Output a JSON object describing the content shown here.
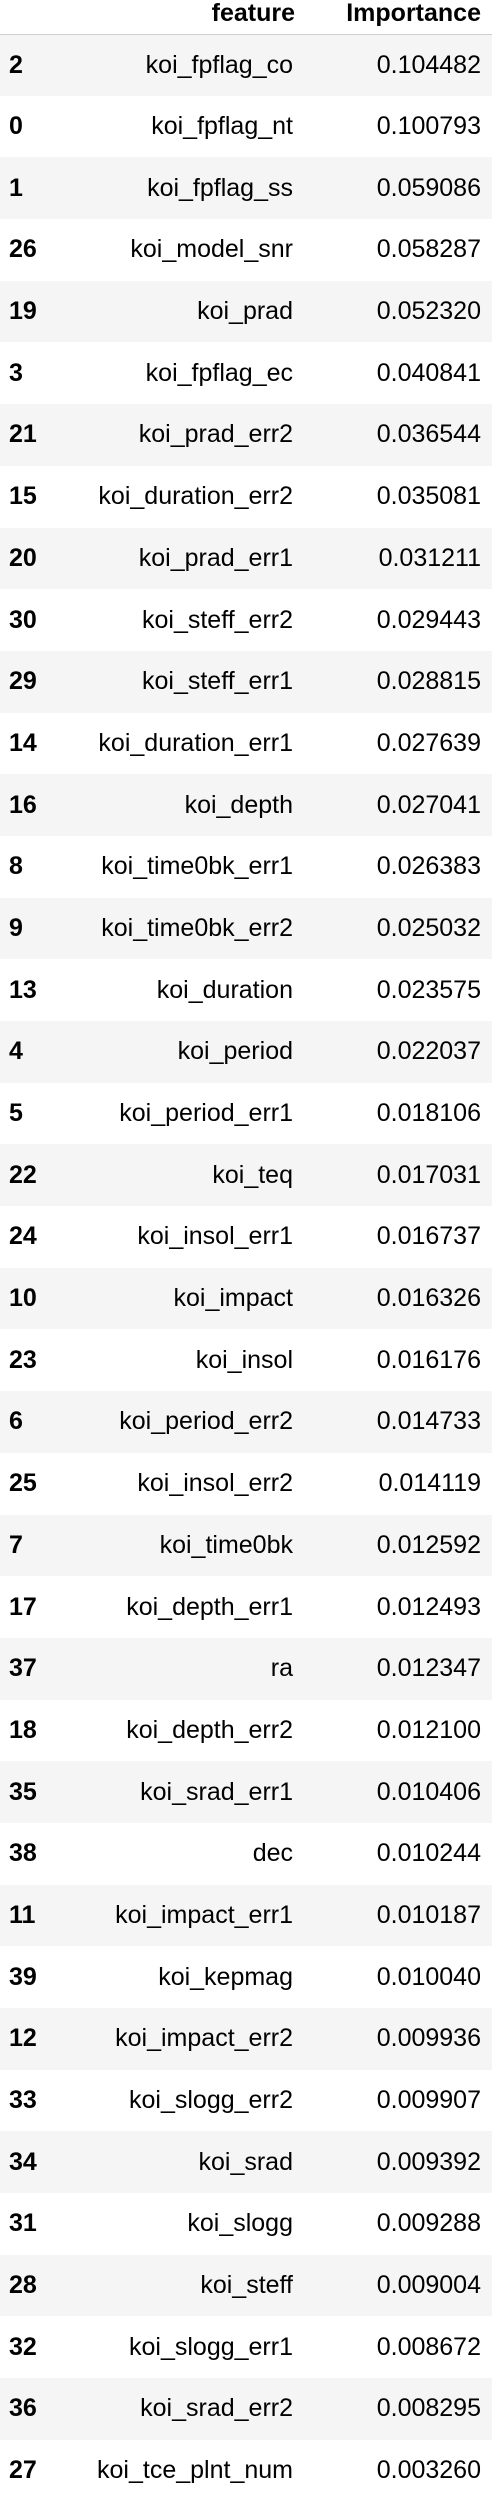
{
  "table": {
    "columns": {
      "index": "",
      "feature": "feature",
      "importance": "Importance"
    },
    "rows": [
      {
        "index": "2",
        "feature": "koi_fpflag_co",
        "importance": "0.104482"
      },
      {
        "index": "0",
        "feature": "koi_fpflag_nt",
        "importance": "0.100793"
      },
      {
        "index": "1",
        "feature": "koi_fpflag_ss",
        "importance": "0.059086"
      },
      {
        "index": "26",
        "feature": "koi_model_snr",
        "importance": "0.058287"
      },
      {
        "index": "19",
        "feature": "koi_prad",
        "importance": "0.052320"
      },
      {
        "index": "3",
        "feature": "koi_fpflag_ec",
        "importance": "0.040841"
      },
      {
        "index": "21",
        "feature": "koi_prad_err2",
        "importance": "0.036544"
      },
      {
        "index": "15",
        "feature": "koi_duration_err2",
        "importance": "0.035081"
      },
      {
        "index": "20",
        "feature": "koi_prad_err1",
        "importance": "0.031211"
      },
      {
        "index": "30",
        "feature": "koi_steff_err2",
        "importance": "0.029443"
      },
      {
        "index": "29",
        "feature": "koi_steff_err1",
        "importance": "0.028815"
      },
      {
        "index": "14",
        "feature": "koi_duration_err1",
        "importance": "0.027639"
      },
      {
        "index": "16",
        "feature": "koi_depth",
        "importance": "0.027041"
      },
      {
        "index": "8",
        "feature": "koi_time0bk_err1",
        "importance": "0.026383"
      },
      {
        "index": "9",
        "feature": "koi_time0bk_err2",
        "importance": "0.025032"
      },
      {
        "index": "13",
        "feature": "koi_duration",
        "importance": "0.023575"
      },
      {
        "index": "4",
        "feature": "koi_period",
        "importance": "0.022037"
      },
      {
        "index": "5",
        "feature": "koi_period_err1",
        "importance": "0.018106"
      },
      {
        "index": "22",
        "feature": "koi_teq",
        "importance": "0.017031"
      },
      {
        "index": "24",
        "feature": "koi_insol_err1",
        "importance": "0.016737"
      },
      {
        "index": "10",
        "feature": "koi_impact",
        "importance": "0.016326"
      },
      {
        "index": "23",
        "feature": "koi_insol",
        "importance": "0.016176"
      },
      {
        "index": "6",
        "feature": "koi_period_err2",
        "importance": "0.014733"
      },
      {
        "index": "25",
        "feature": "koi_insol_err2",
        "importance": "0.014119"
      },
      {
        "index": "7",
        "feature": "koi_time0bk",
        "importance": "0.012592"
      },
      {
        "index": "17",
        "feature": "koi_depth_err1",
        "importance": "0.012493"
      },
      {
        "index": "37",
        "feature": "ra",
        "importance": "0.012347"
      },
      {
        "index": "18",
        "feature": "koi_depth_err2",
        "importance": "0.012100"
      },
      {
        "index": "35",
        "feature": "koi_srad_err1",
        "importance": "0.010406"
      },
      {
        "index": "38",
        "feature": "dec",
        "importance": "0.010244"
      },
      {
        "index": "11",
        "feature": "koi_impact_err1",
        "importance": "0.010187"
      },
      {
        "index": "39",
        "feature": "koi_kepmag",
        "importance": "0.010040"
      },
      {
        "index": "12",
        "feature": "koi_impact_err2",
        "importance": "0.009936"
      },
      {
        "index": "33",
        "feature": "koi_slogg_err2",
        "importance": "0.009907"
      },
      {
        "index": "34",
        "feature": "koi_srad",
        "importance": "0.009392"
      },
      {
        "index": "31",
        "feature": "koi_slogg",
        "importance": "0.009288"
      },
      {
        "index": "28",
        "feature": "koi_steff",
        "importance": "0.009004"
      },
      {
        "index": "32",
        "feature": "koi_slogg_err1",
        "importance": "0.008672"
      },
      {
        "index": "36",
        "feature": "koi_srad_err2",
        "importance": "0.008295"
      },
      {
        "index": "27",
        "feature": "koi_tce_plnt_num",
        "importance": "0.003260"
      }
    ]
  }
}
